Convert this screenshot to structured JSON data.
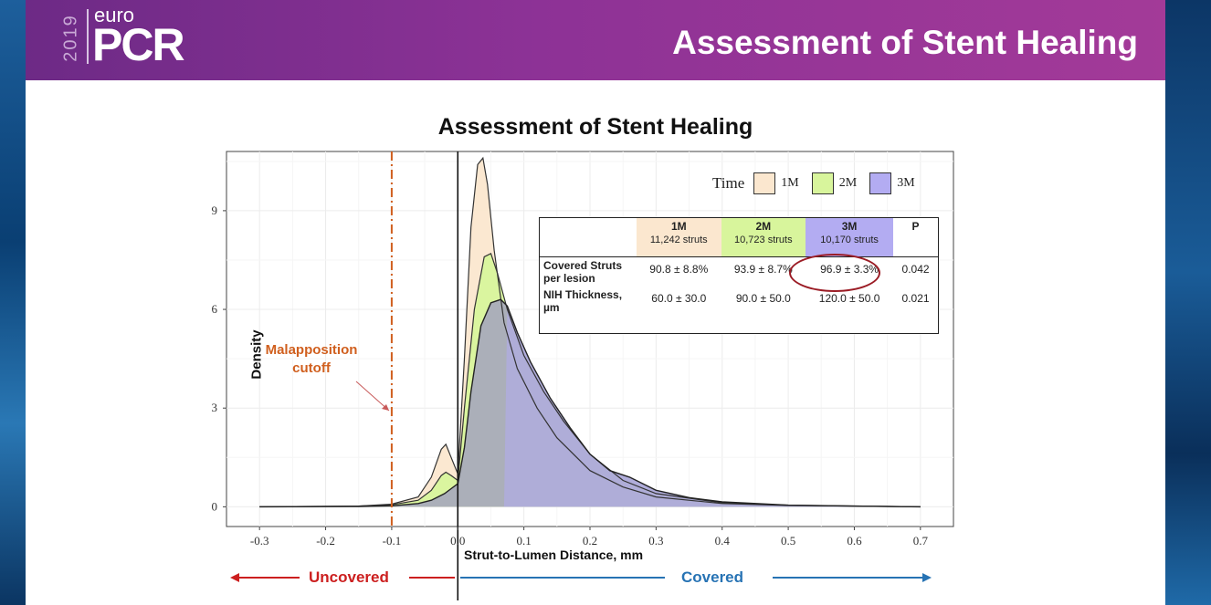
{
  "header": {
    "logo_year": "2019",
    "logo_top": "euro",
    "logo_main": "PCR",
    "title": "Assessment of Stent Healing"
  },
  "colors": {
    "header_purple": "#8d3296",
    "fill_1M": "#fbe7cf",
    "fill_2M": "#d8f59c",
    "fill_3M": "#b3acf2",
    "overlap": "#a9abbb",
    "malapposition": "#d05f1e",
    "uncovered": "#cc1f1f",
    "covered": "#2773b4"
  },
  "chart_data": {
    "type": "area",
    "title": "Assessment of Stent Healing",
    "xlabel": "Strut-to-Lumen Distance, mm",
    "ylabel": "Density",
    "xlim": [
      -0.35,
      0.75
    ],
    "ylim": [
      -0.6,
      10.8
    ],
    "x_ticks": [
      -0.3,
      -0.2,
      -0.1,
      0.0,
      0.1,
      0.2,
      0.3,
      0.4,
      0.5,
      0.6,
      0.7
    ],
    "x_tick_labels": [
      "-0.3",
      "-0.2",
      "-0.1",
      "0.0",
      "0.1",
      "0.2",
      "0.3",
      "0.4",
      "0.5",
      "0.6",
      "0.7"
    ],
    "y_ticks": [
      0,
      3,
      6,
      9
    ],
    "y_tick_labels": [
      "0",
      "3",
      "6",
      "9"
    ],
    "legend_title": "Time",
    "legend": [
      "1M",
      "2M",
      "3M"
    ],
    "series": [
      {
        "name": "1M",
        "x": [
          -0.3,
          -0.15,
          -0.1,
          -0.06,
          -0.04,
          -0.025,
          -0.018,
          -0.01,
          0.0,
          0.01,
          0.02,
          0.03,
          0.038,
          0.045,
          0.055,
          0.07,
          0.09,
          0.12,
          0.15,
          0.2,
          0.25,
          0.3,
          0.4,
          0.5,
          0.7
        ],
        "values": [
          0,
          0.02,
          0.08,
          0.3,
          0.9,
          1.75,
          1.9,
          1.5,
          1.0,
          4.5,
          8.5,
          10.4,
          10.6,
          9.8,
          7.8,
          5.6,
          4.2,
          3.0,
          2.1,
          1.1,
          0.6,
          0.3,
          0.1,
          0.04,
          0
        ]
      },
      {
        "name": "2M",
        "x": [
          -0.3,
          -0.15,
          -0.1,
          -0.06,
          -0.04,
          -0.025,
          -0.018,
          -0.01,
          0.0,
          0.01,
          0.025,
          0.04,
          0.05,
          0.06,
          0.075,
          0.1,
          0.13,
          0.16,
          0.2,
          0.25,
          0.3,
          0.4,
          0.5,
          0.7
        ],
        "values": [
          0,
          0.02,
          0.06,
          0.2,
          0.5,
          0.95,
          1.05,
          0.95,
          0.8,
          3.0,
          6.0,
          7.6,
          7.7,
          7.1,
          6.0,
          4.6,
          3.5,
          2.6,
          1.6,
          0.8,
          0.4,
          0.12,
          0.05,
          0
        ]
      },
      {
        "name": "3M",
        "x": [
          -0.3,
          -0.15,
          -0.1,
          -0.06,
          -0.04,
          -0.02,
          -0.01,
          0.0,
          0.01,
          0.02,
          0.035,
          0.05,
          0.065,
          0.075,
          0.09,
          0.11,
          0.14,
          0.17,
          0.2,
          0.23,
          0.26,
          0.3,
          0.35,
          0.4,
          0.5,
          0.6,
          0.7
        ],
        "values": [
          0,
          0.01,
          0.03,
          0.1,
          0.2,
          0.4,
          0.55,
          0.7,
          1.8,
          3.5,
          5.5,
          6.2,
          6.3,
          6.1,
          5.3,
          4.4,
          3.3,
          2.4,
          1.6,
          1.1,
          0.9,
          0.5,
          0.28,
          0.15,
          0.05,
          0.02,
          0
        ]
      }
    ],
    "annotations": {
      "malapposition_line_x": -0.1,
      "malapposition_label": [
        "Malapposition",
        "cutoff"
      ],
      "zero_line_x": 0.0
    }
  },
  "stats_table": {
    "headers": [
      {
        "label": "1M",
        "sub": "11,242 struts"
      },
      {
        "label": "2M",
        "sub": "10,723 struts"
      },
      {
        "label": "3M",
        "sub": "10,170 struts"
      },
      {
        "label": "P",
        "sub": ""
      }
    ],
    "rows": [
      {
        "label": "Covered Struts per lesion",
        "values": [
          "90.8 ± 8.8%",
          "93.9 ± 8.7%",
          "96.9 ± 3.3%",
          "0.042"
        ]
      },
      {
        "label": "NIH Thickness, µm",
        "values": [
          "60.0 ± 30.0",
          "90.0 ± 50.0",
          "120.0 ± 50.0",
          "0.021"
        ]
      }
    ]
  },
  "bottom": {
    "uncovered": "Uncovered",
    "covered": "Covered"
  }
}
